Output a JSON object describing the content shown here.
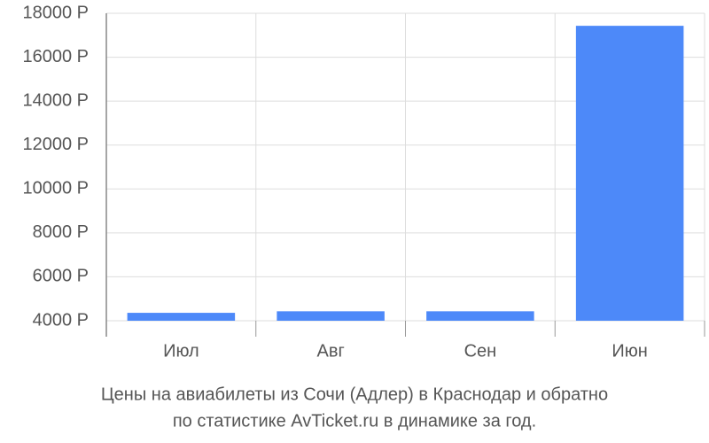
{
  "chart_data": {
    "type": "bar",
    "title": [
      "Цены на авиабилеты из Сочи (Адлер) в Краснодар и обратно",
      "по статистике AvTicket.ru в динамике за год."
    ],
    "categories": [
      "Июл",
      "Авг",
      "Сен",
      "Июн"
    ],
    "values": [
      4360,
      4430,
      4430,
      17430
    ],
    "color": "#4d89f9",
    "ylim": [
      4000,
      18000
    ],
    "yticks": [
      {
        "value": 4000,
        "label": "4000 Р"
      },
      {
        "value": 6000,
        "label": "6000 Р"
      },
      {
        "value": 8000,
        "label": "8000 Р"
      },
      {
        "value": 10000,
        "label": "10000 Р"
      },
      {
        "value": 12000,
        "label": "12000 Р"
      },
      {
        "value": 14000,
        "label": "14000 Р"
      },
      {
        "value": 16000,
        "label": "16000 Р"
      },
      {
        "value": 18000,
        "label": "18000 Р"
      }
    ],
    "grid": true
  }
}
